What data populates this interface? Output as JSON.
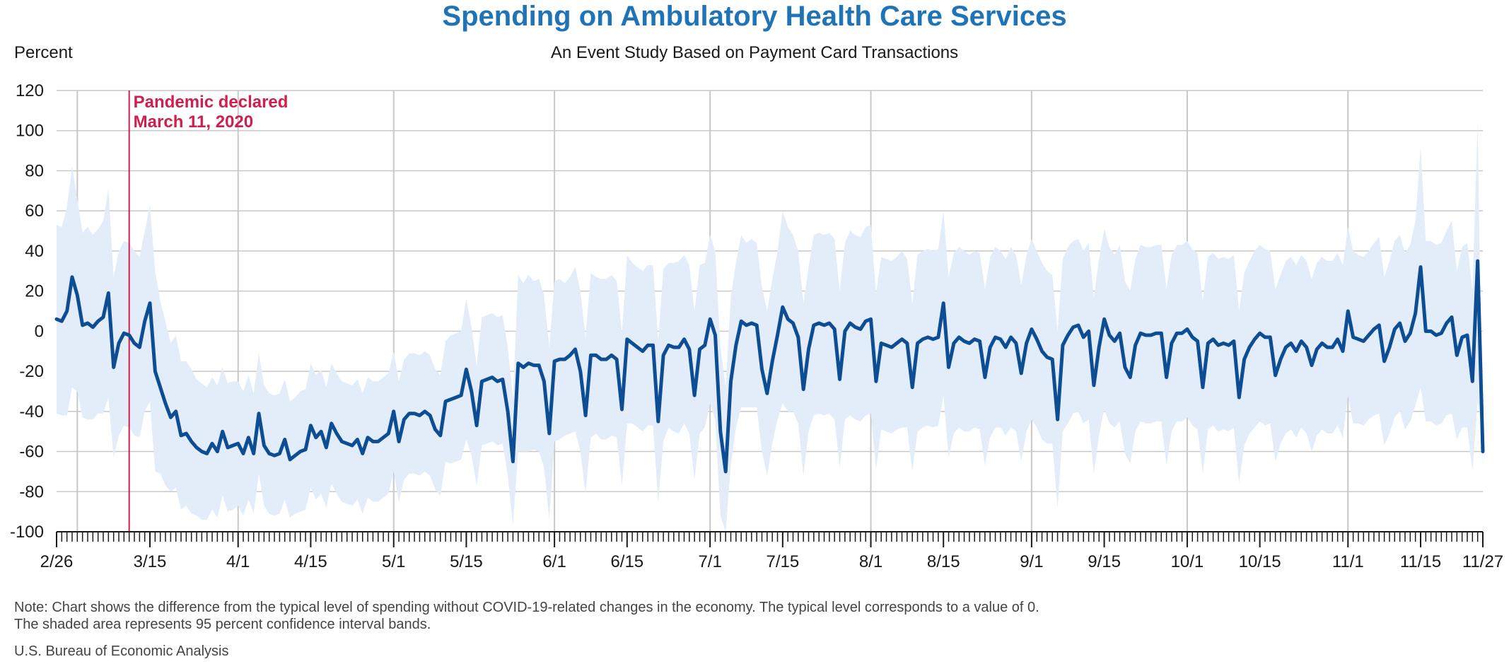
{
  "chart_data": {
    "type": "line",
    "title": "Spending on Ambulatory Health Care Services",
    "subtitle": "An Event Study Based on Payment Card Transactions",
    "ylabel": "Percent",
    "ylim": [
      -100,
      120
    ],
    "yticks": [
      120,
      100,
      80,
      60,
      40,
      20,
      0,
      -20,
      -40,
      -60,
      -80,
      -100
    ],
    "x_start_date": "2020-02-26",
    "x_end_date": "2020-11-27",
    "xticks": [
      {
        "label": "2/26",
        "day": 0
      },
      {
        "label": "3/15",
        "day": 18
      },
      {
        "label": "4/1",
        "day": 35
      },
      {
        "label": "4/15",
        "day": 49
      },
      {
        "label": "5/1",
        "day": 65
      },
      {
        "label": "5/15",
        "day": 79
      },
      {
        "label": "6/1",
        "day": 96
      },
      {
        "label": "6/15",
        "day": 110
      },
      {
        "label": "7/1",
        "day": 126
      },
      {
        "label": "7/15",
        "day": 140
      },
      {
        "label": "8/1",
        "day": 157
      },
      {
        "label": "8/15",
        "day": 171
      },
      {
        "label": "9/1",
        "day": 188
      },
      {
        "label": "9/15",
        "day": 202
      },
      {
        "label": "10/1",
        "day": 218
      },
      {
        "label": "10/15",
        "day": 232
      },
      {
        "label": "11/1",
        "day": 249
      },
      {
        "label": "11/15",
        "day": 263
      },
      {
        "label": "11/27",
        "day": 275
      }
    ],
    "gridlines_x_days": [
      4,
      35,
      65,
      96,
      126,
      157,
      188,
      218,
      249
    ],
    "grid": true,
    "annotation": {
      "day": 14,
      "line1": "Pandemic declared",
      "line2": "March 11, 2020",
      "color": "#cf1f4e"
    },
    "series": [
      {
        "color": "#0d4d94",
        "values": [
          6,
          5,
          10,
          27,
          18,
          3,
          4,
          2,
          5,
          7,
          19,
          -18,
          -6,
          -1,
          -2,
          -6,
          -8,
          5,
          14,
          -20,
          -28,
          -36,
          -43,
          -40,
          -52,
          -51,
          -55,
          -58,
          -60,
          -61,
          -56,
          -60,
          -50,
          -58,
          -57,
          -56,
          -61,
          -53,
          -61,
          -41,
          -57,
          -61,
          -62,
          -61,
          -54,
          -64,
          -62,
          -60,
          -59,
          -47,
          -53,
          -50,
          -58,
          -46,
          -51,
          -55,
          -56,
          -57,
          -54,
          -61,
          -53,
          -55,
          -55,
          -53,
          -51,
          -40,
          -55,
          -44,
          -41,
          -41,
          -42,
          -40,
          -42,
          -49,
          -52,
          -35,
          -34,
          -33,
          -32,
          -19,
          -30,
          -47,
          -25,
          -24,
          -23,
          -25,
          -24,
          -40,
          -65,
          -16,
          -18,
          -16,
          -17,
          -17,
          -25,
          -51,
          -15,
          -14,
          -14,
          -12,
          -9,
          -20,
          -42,
          -12,
          -12,
          -14,
          -14,
          -12,
          -14,
          -39,
          -4,
          -6,
          -8,
          -10,
          -7,
          -7,
          -45,
          -12,
          -7,
          -8,
          -8,
          -4,
          -9,
          -32,
          -9,
          -7,
          6,
          -2,
          -50,
          -70,
          -25,
          -7,
          5,
          3,
          4,
          3,
          -19,
          -31,
          -15,
          -2,
          12,
          6,
          4,
          -3,
          -29,
          -9,
          3,
          4,
          3,
          4,
          1,
          -24,
          0,
          4,
          2,
          1,
          5,
          6,
          -25,
          -6,
          -7,
          -8,
          -6,
          -4,
          -6,
          -28,
          -6,
          -4,
          -3,
          -4,
          -3,
          14,
          -18,
          -6,
          -3,
          -5,
          -6,
          -4,
          -5,
          -23,
          -8,
          -3,
          -4,
          -8,
          -3,
          -6,
          -21,
          -6,
          1,
          -4,
          -10,
          -13,
          -14,
          -44,
          -7,
          -2,
          2,
          3,
          -3,
          0,
          -27,
          -8,
          6,
          -2,
          -5,
          -1,
          -18,
          -23,
          -7,
          -1,
          -2,
          -2,
          -1,
          -1,
          -23,
          -6,
          -1,
          -1,
          1,
          -3,
          -5,
          -28,
          -6,
          -4,
          -7,
          -6,
          -7,
          -5,
          -33,
          -14,
          -8,
          -4,
          -1,
          -3,
          -3,
          -22,
          -14,
          -8,
          -6,
          -10,
          -5,
          -8,
          -17,
          -9,
          -6,
          -8,
          -8,
          -4,
          -10,
          10,
          -3,
          -4,
          -5,
          -2,
          1,
          3,
          -15,
          -8,
          1,
          4,
          -5,
          -1,
          9,
          32,
          0,
          0,
          -2,
          -1,
          4,
          7,
          -12,
          -3,
          -2,
          -25,
          35,
          -60
        ]
      }
    ],
    "ci_band": {
      "color": "#e3edf9",
      "upper": [
        53,
        52,
        62,
        82,
        66,
        49,
        52,
        48,
        51,
        55,
        71,
        27,
        40,
        45,
        44,
        40,
        37,
        50,
        63,
        30,
        15,
        5,
        -6,
        -2,
        -15,
        -15,
        -19,
        -24,
        -26,
        -28,
        -23,
        -27,
        -18,
        -26,
        -25,
        -25,
        -30,
        -22,
        -31,
        -11,
        -27,
        -31,
        -32,
        -31,
        -24,
        -35,
        -33,
        -30,
        -29,
        -16,
        -22,
        -19,
        -28,
        -16,
        -21,
        -25,
        -26,
        -27,
        -24,
        -31,
        -23,
        -25,
        -25,
        -23,
        -21,
        -10,
        -25,
        -14,
        -11,
        -11,
        -12,
        -10,
        -12,
        -19,
        -22,
        -5,
        -2,
        -1,
        0,
        16,
        2,
        -17,
        7,
        8,
        9,
        7,
        8,
        -8,
        -33,
        28,
        24,
        28,
        25,
        26,
        18,
        -8,
        25,
        26,
        24,
        27,
        32,
        20,
        -3,
        29,
        27,
        26,
        26,
        28,
        25,
        -1,
        38,
        34,
        32,
        30,
        33,
        33,
        -5,
        31,
        34,
        34,
        35,
        38,
        33,
        10,
        33,
        34,
        48,
        40,
        -8,
        -28,
        17,
        34,
        48,
        44,
        46,
        44,
        22,
        10,
        26,
        40,
        60,
        52,
        48,
        40,
        14,
        32,
        48,
        49,
        48,
        49,
        46,
        20,
        44,
        50,
        48,
        47,
        52,
        53,
        19,
        37,
        36,
        35,
        37,
        40,
        36,
        14,
        38,
        40,
        41,
        40,
        41,
        60,
        27,
        39,
        42,
        40,
        38,
        40,
        39,
        21,
        37,
        42,
        40,
        36,
        42,
        38,
        23,
        38,
        46,
        40,
        34,
        30,
        28,
        0,
        36,
        42,
        45,
        46,
        40,
        44,
        17,
        36,
        51,
        42,
        38,
        43,
        25,
        20,
        36,
        43,
        42,
        42,
        43,
        43,
        21,
        38,
        43,
        43,
        45,
        41,
        39,
        15,
        37,
        39,
        36,
        37,
        36,
        38,
        10,
        29,
        35,
        40,
        43,
        41,
        40,
        21,
        28,
        35,
        37,
        33,
        38,
        35,
        26,
        34,
        37,
        35,
        35,
        39,
        33,
        52,
        40,
        38,
        37,
        40,
        44,
        47,
        27,
        35,
        45,
        48,
        39,
        43,
        55,
        92,
        45,
        45,
        43,
        44,
        50,
        55,
        30,
        42,
        44,
        20,
        105,
        -70
      ]
    }
  },
  "note_line1": "Note: Chart shows the difference from the typical level of spending without COVID-19-related changes in the economy. The typical level corresponds to a value of 0.",
  "note_line2": "The shaded area represents 95 percent confidence interval bands.",
  "source": "U.S. Bureau of Economic Analysis"
}
